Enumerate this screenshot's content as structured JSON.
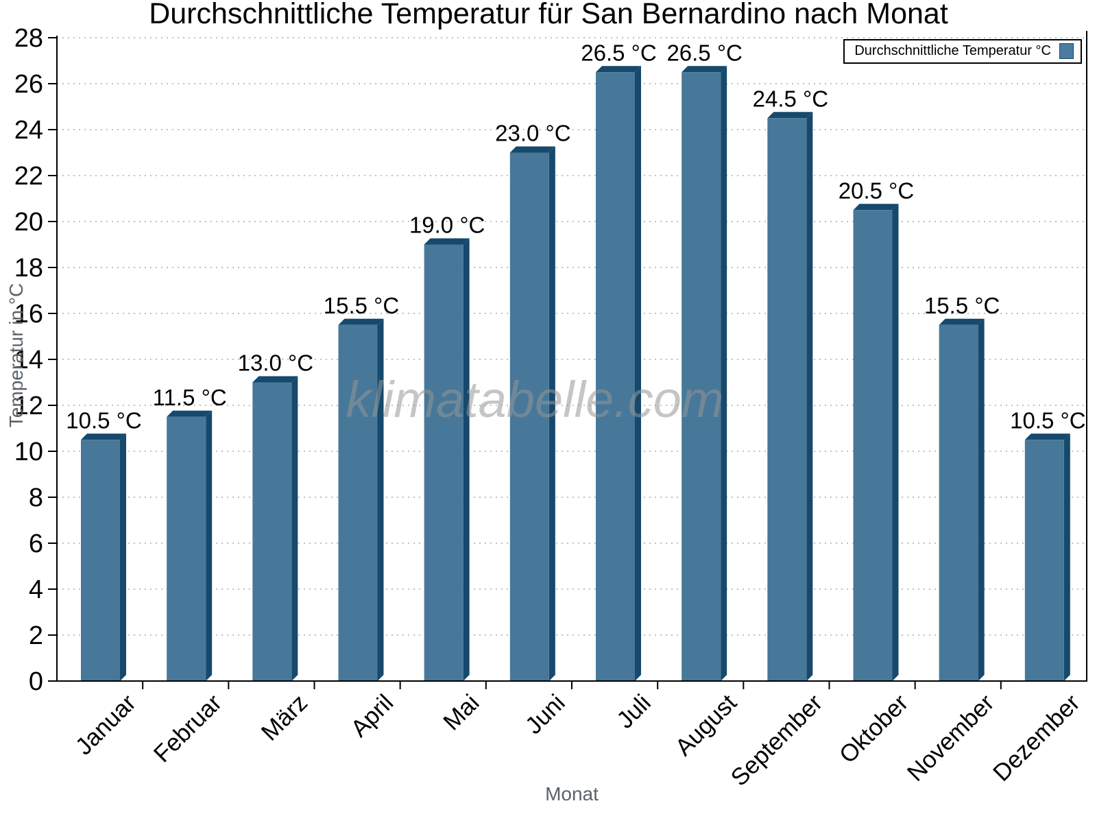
{
  "chart": {
    "title": "Durchschnittliche Temperatur für San Bernardino nach Monat",
    "xlabel": "Monat",
    "ylabel": "Temperatur in °C",
    "legend_label": "Durchschnittliche Temperatur °C",
    "watermark": "klimatabelle.com"
  },
  "chart_data": {
    "type": "bar",
    "title": "Durchschnittliche Temperatur für San Bernardino nach Monat",
    "xlabel": "Monat",
    "ylabel": "Temperatur in °C",
    "categories": [
      "Januar",
      "Februar",
      "März",
      "April",
      "Mai",
      "Juni",
      "Juli",
      "August",
      "September",
      "Oktober",
      "November",
      "Dezember"
    ],
    "values": [
      10.5,
      11.5,
      13.0,
      15.5,
      19.0,
      23.0,
      26.5,
      26.5,
      24.5,
      20.5,
      15.5,
      10.5
    ],
    "value_labels": [
      "10.5 °C",
      "11.5 °C",
      "13.0 °C",
      "15.5 °C",
      "19.0 °C",
      "23.0 °C",
      "26.5 °C",
      "26.5 °C",
      "24.5 °C",
      "20.5 °C",
      "15.5 °C",
      "10.5 °C"
    ],
    "ylim": [
      0,
      28
    ],
    "ytick_step": 2,
    "ytick_labels": [
      "0",
      "2",
      "4",
      "6",
      "8",
      "10",
      "12",
      "14",
      "16",
      "18",
      "20",
      "22",
      "24",
      "26",
      "28"
    ],
    "grid": true,
    "grid_style": "dotted",
    "legend": [
      "Durchschnittliche Temperatur °C"
    ],
    "legend_position": "top-right",
    "x_label_rotation": -45,
    "colors": {
      "bar_face": "#477899",
      "bar_side": "#16496c",
      "grid": "#c0c0c0",
      "axis": "#000000",
      "tick_text": "#000000",
      "axis_title_gray": "#5b6269",
      "watermark_gray": "#969696"
    }
  }
}
